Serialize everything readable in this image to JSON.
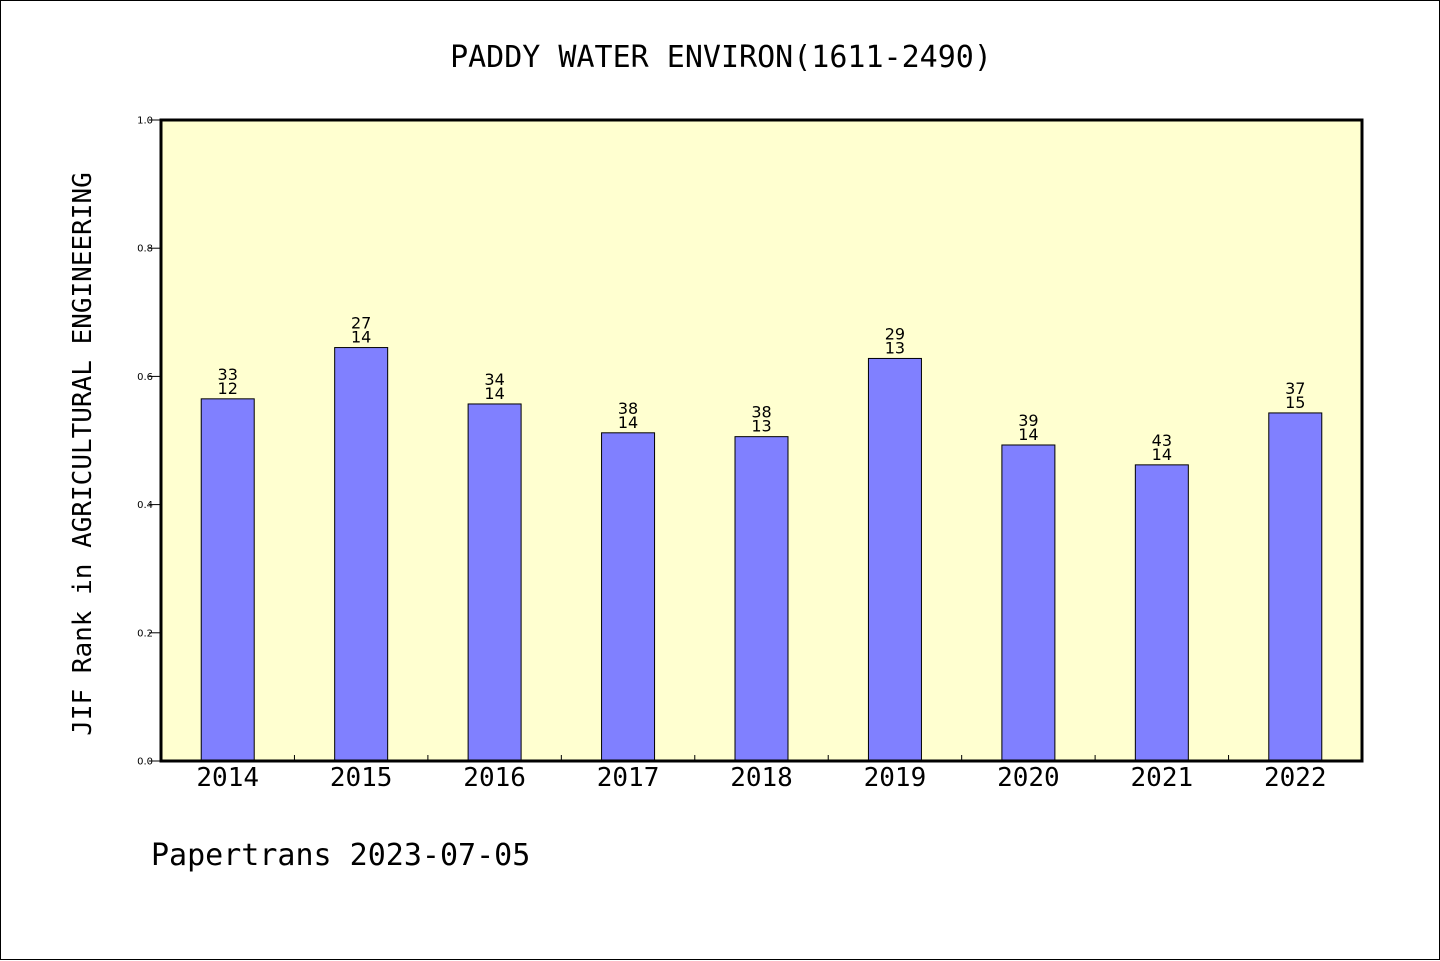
{
  "chart_data": {
    "type": "bar",
    "title": "PADDY WATER ENVIRON(1611-2490)",
    "ylabel": "JIF Rank in AGRICULTURAL ENGINEERING",
    "xlabel": "",
    "ylim": [
      0.0,
      1.0
    ],
    "yticks": [
      "0.0",
      "0.2",
      "0.4",
      "0.6",
      "0.8",
      "1.0"
    ],
    "ytick_values": [
      0.0,
      0.2,
      0.4,
      0.6,
      0.8,
      1.0
    ],
    "categories": [
      "2014",
      "2015",
      "2016",
      "2017",
      "2018",
      "2019",
      "2020",
      "2021",
      "2022"
    ],
    "values": [
      0.565,
      0.645,
      0.557,
      0.512,
      0.506,
      0.628,
      0.493,
      0.462,
      0.543
    ],
    "labels_top": [
      "33",
      "27",
      "34",
      "38",
      "38",
      "29",
      "39",
      "43",
      "37"
    ],
    "labels_bottom": [
      "12",
      "14",
      "14",
      "14",
      "13",
      "13",
      "14",
      "14",
      "15"
    ],
    "grid": false,
    "colors": {
      "plot_background": "#ffffd0",
      "bar_fill": "#8080ff",
      "bar_stroke": "#000000"
    }
  },
  "footer": {
    "text": "Papertrans 2023-07-05"
  }
}
